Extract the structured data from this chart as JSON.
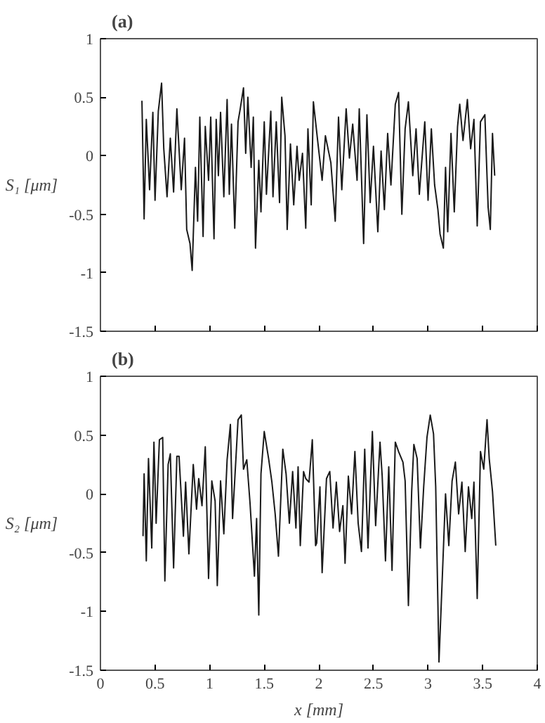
{
  "chart_data": [
    {
      "type": "line",
      "title": "(a)",
      "ylabel": "S₁ [μm]",
      "xlim": [
        0,
        4
      ],
      "xticks": [
        0,
        0.5,
        1,
        1.5,
        2,
        2.5,
        3,
        3.5,
        4
      ],
      "ylim": [
        -1.5,
        1
      ],
      "yticks": [
        -1.5,
        -1,
        -0.5,
        0,
        0.5,
        1
      ],
      "tick_labels": "y",
      "grid": false,
      "series": [
        {
          "color": "#1a1a1a",
          "x": [
            0.38,
            0.4,
            0.42,
            0.45,
            0.48,
            0.5,
            0.53,
            0.56,
            0.58,
            0.61,
            0.64,
            0.67,
            0.7,
            0.74,
            0.77,
            0.79,
            0.82,
            0.84,
            0.87,
            0.89,
            0.91,
            0.94,
            0.96,
            0.99,
            1.01,
            1.04,
            1.06,
            1.08,
            1.1,
            1.13,
            1.16,
            1.18,
            1.2,
            1.23,
            1.26,
            1.28,
            1.31,
            1.33,
            1.35,
            1.38,
            1.4,
            1.42,
            1.45,
            1.47,
            1.5,
            1.52,
            1.56,
            1.58,
            1.61,
            1.64,
            1.66,
            1.69,
            1.71,
            1.74,
            1.77,
            1.8,
            1.82,
            1.85,
            1.88,
            1.9,
            1.93,
            1.95,
            1.99,
            2.03,
            2.06,
            2.11,
            2.15,
            2.18,
            2.21,
            2.25,
            2.28,
            2.31,
            2.35,
            2.37,
            2.41,
            2.44,
            2.47,
            2.5,
            2.54,
            2.57,
            2.6,
            2.63,
            2.66,
            2.7,
            2.73,
            2.76,
            2.79,
            2.82,
            2.86,
            2.89,
            2.92,
            2.97,
            3.0,
            3.03,
            3.06,
            3.09,
            3.11,
            3.14,
            3.16,
            3.18,
            3.21,
            3.24,
            3.27,
            3.29,
            3.32,
            3.36,
            3.39,
            3.42,
            3.45,
            3.48,
            3.52,
            3.55,
            3.57,
            3.59,
            3.61
          ],
          "values": [
            0.47,
            -0.54,
            0.31,
            -0.29,
            0.37,
            -0.38,
            0.38,
            0.62,
            0.06,
            -0.35,
            0.15,
            -0.31,
            0.4,
            -0.29,
            0.15,
            -0.63,
            -0.75,
            -0.98,
            -0.1,
            -0.56,
            0.33,
            -0.69,
            0.25,
            -0.21,
            0.33,
            -0.71,
            0.31,
            -0.17,
            0.37,
            -0.35,
            0.48,
            -0.33,
            0.27,
            -0.62,
            0.29,
            0.4,
            0.58,
            0.02,
            0.5,
            -0.1,
            0.33,
            -0.79,
            -0.04,
            -0.48,
            0.29,
            -0.33,
            0.38,
            -0.35,
            0.29,
            -0.4,
            0.5,
            0.17,
            -0.63,
            0.1,
            -0.42,
            0.08,
            -0.21,
            0.02,
            -0.62,
            0.23,
            -0.42,
            0.46,
            0.12,
            -0.21,
            0.17,
            -0.06,
            -0.56,
            0.33,
            -0.29,
            0.4,
            -0.02,
            0.27,
            -0.21,
            0.4,
            -0.75,
            0.35,
            -0.4,
            0.08,
            -0.65,
            0.04,
            -0.46,
            0.19,
            -0.25,
            0.44,
            0.54,
            -0.5,
            0.23,
            0.46,
            -0.17,
            0.23,
            -0.33,
            0.29,
            -0.38,
            0.23,
            -0.25,
            -0.46,
            -0.67,
            -0.79,
            -0.1,
            -0.65,
            0.19,
            -0.48,
            0.25,
            0.44,
            0.13,
            0.48,
            0.06,
            0.31,
            -0.6,
            0.29,
            0.35,
            -0.44,
            -0.63,
            0.19,
            -0.17
          ]
        }
      ]
    },
    {
      "type": "line",
      "title": "(b)",
      "xlabel": "x [mm]",
      "ylabel": "S₂ [μm]",
      "xlim": [
        0,
        4
      ],
      "xticks": [
        0,
        0.5,
        1,
        1.5,
        2,
        2.5,
        3,
        3.5,
        4
      ],
      "ylim": [
        -1.5,
        1
      ],
      "yticks": [
        -1.5,
        -1,
        -0.5,
        0,
        0.5,
        1
      ],
      "grid": false,
      "series": [
        {
          "color": "#1a1a1a",
          "x": [
            0.39,
            0.4,
            0.42,
            0.44,
            0.47,
            0.49,
            0.51,
            0.54,
            0.57,
            0.59,
            0.62,
            0.64,
            0.67,
            0.7,
            0.72,
            0.76,
            0.78,
            0.81,
            0.85,
            0.88,
            0.9,
            0.93,
            0.96,
            0.99,
            1.02,
            1.05,
            1.07,
            1.1,
            1.13,
            1.16,
            1.19,
            1.21,
            1.24,
            1.26,
            1.29,
            1.31,
            1.34,
            1.37,
            1.41,
            1.43,
            1.45,
            1.47,
            1.5,
            1.54,
            1.57,
            1.6,
            1.63,
            1.67,
            1.7,
            1.73,
            1.76,
            1.79,
            1.81,
            1.83,
            1.86,
            1.88,
            1.91,
            1.94,
            1.97,
            1.98,
            2.01,
            2.03,
            2.07,
            2.1,
            2.13,
            2.16,
            2.19,
            2.22,
            2.24,
            2.27,
            2.3,
            2.33,
            2.36,
            2.39,
            2.42,
            2.45,
            2.49,
            2.52,
            2.56,
            2.58,
            2.61,
            2.64,
            2.67,
            2.7,
            2.73,
            2.77,
            2.79,
            2.82,
            2.85,
            2.87,
            2.9,
            2.93,
            2.96,
            2.99,
            3.02,
            3.05,
            3.07,
            3.1,
            3.13,
            3.16,
            3.19,
            3.22,
            3.25,
            3.28,
            3.31,
            3.34,
            3.37,
            3.4,
            3.42,
            3.45,
            3.48,
            3.51,
            3.54,
            3.56,
            3.59,
            3.62
          ],
          "values": [
            -0.36,
            0.17,
            -0.57,
            0.3,
            -0.46,
            0.44,
            -0.25,
            0.46,
            0.48,
            -0.74,
            0.25,
            0.34,
            -0.63,
            0.32,
            0.32,
            -0.36,
            0.1,
            -0.51,
            0.25,
            -0.13,
            0.13,
            -0.1,
            0.4,
            -0.72,
            0.11,
            -0.06,
            -0.78,
            0.11,
            -0.34,
            0.29,
            0.59,
            -0.21,
            0.29,
            0.63,
            0.67,
            0.21,
            0.29,
            -0.08,
            -0.7,
            -0.21,
            -1.03,
            0.17,
            0.53,
            0.3,
            0.1,
            -0.17,
            -0.53,
            0.38,
            0.17,
            -0.25,
            0.19,
            -0.29,
            0.23,
            -0.44,
            0.19,
            0.13,
            0.1,
            0.46,
            -0.44,
            -0.42,
            0.06,
            -0.67,
            0.13,
            0.19,
            -0.29,
            0.1,
            -0.32,
            -0.1,
            -0.59,
            0.15,
            -0.17,
            0.36,
            -0.25,
            -0.49,
            0.38,
            -0.46,
            0.53,
            -0.27,
            0.44,
            0.15,
            -0.57,
            0.23,
            -0.65,
            0.44,
            0.36,
            0.27,
            0.11,
            -0.95,
            0.02,
            0.42,
            0.3,
            -0.46,
            0.06,
            0.48,
            0.67,
            0.51,
            0.06,
            -1.43,
            -0.72,
            0.0,
            -0.44,
            0.11,
            0.27,
            -0.17,
            0.1,
            -0.49,
            0.06,
            -0.21,
            0.1,
            -0.89,
            0.36,
            0.21,
            0.63,
            0.3,
            0.02,
            -0.44
          ]
        }
      ]
    }
  ]
}
